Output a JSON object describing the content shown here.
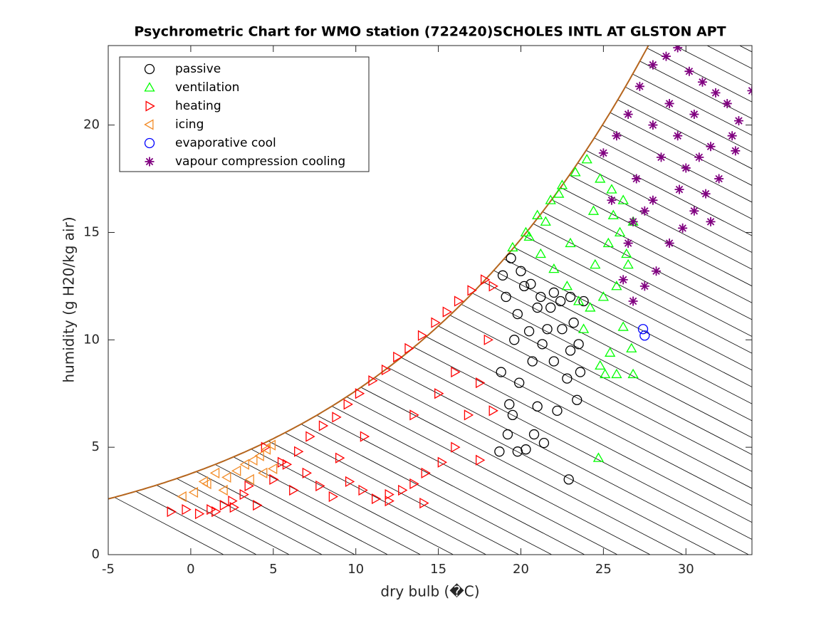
{
  "chart_data": {
    "type": "scatter",
    "title": "Psychrometric Chart for WMO station (722420)SCHOLES INTL AT GLSTON APT",
    "x_label": "dry bulb (�C)",
    "y_label": "humidity (g H20/kg air)",
    "xlim": [
      -5,
      34
    ],
    "ylim": [
      0,
      23.7
    ],
    "xticks": [
      -5,
      0,
      5,
      10,
      15,
      20,
      25,
      30
    ],
    "yticks": [
      0,
      5,
      10,
      15,
      20
    ],
    "legend": "upper left",
    "series": [
      {
        "name": "passive",
        "color": "#000000",
        "marker": "circle",
        "x": [
          18.7,
          19.2,
          19.5,
          19.8,
          20.3,
          20.8,
          21.4,
          21.0,
          22.2,
          22.9,
          23.4,
          23.6,
          23.0,
          22.5,
          21.8,
          21.2,
          20.6,
          20.0,
          19.4,
          18.9,
          19.1,
          19.8,
          20.5,
          21.3,
          22.0,
          22.8,
          23.5,
          23.8,
          23.2,
          22.4,
          21.6,
          20.7,
          19.9,
          19.3,
          18.8,
          19.6,
          20.2,
          21.0,
          22.0,
          23.0
        ],
        "values": [
          4.8,
          5.6,
          6.5,
          4.8,
          4.9,
          5.6,
          5.2,
          6.9,
          6.7,
          3.5,
          7.2,
          8.5,
          9.5,
          10.5,
          11.5,
          12.0,
          12.6,
          13.2,
          13.8,
          13.0,
          12.0,
          11.2,
          10.4,
          9.8,
          9.0,
          8.2,
          9.8,
          11.8,
          10.8,
          11.8,
          10.5,
          9.0,
          8.0,
          7.0,
          8.5,
          10.0,
          12.5,
          11.5,
          12.2,
          12.0
        ]
      },
      {
        "name": "ventilation",
        "color": "#00ff00",
        "marker": "triangle-up",
        "x": [
          19.5,
          20.3,
          21.0,
          21.8,
          22.5,
          23.3,
          24.0,
          24.8,
          25.5,
          26.2,
          26.8,
          26.5,
          25.8,
          25.0,
          24.2,
          23.5,
          22.8,
          22.0,
          21.2,
          20.5,
          24.7,
          26.8,
          25.8,
          25.1,
          24.8,
          26.7,
          26.2,
          25.4,
          23.8,
          24.5,
          25.3,
          26.0,
          22.3,
          21.5,
          23.0,
          24.4,
          25.6,
          26.4
        ],
        "values": [
          14.3,
          15.0,
          15.8,
          16.5,
          17.2,
          17.8,
          18.4,
          17.5,
          17.0,
          16.5,
          15.5,
          13.5,
          12.5,
          12.0,
          11.5,
          11.8,
          12.5,
          13.3,
          14.0,
          14.8,
          4.5,
          8.4,
          8.4,
          8.4,
          8.8,
          9.6,
          10.6,
          9.4,
          10.5,
          13.5,
          14.5,
          15.0,
          16.8,
          15.5,
          14.5,
          16.0,
          15.8,
          14.0
        ]
      },
      {
        "name": "heating",
        "color": "#ff0000",
        "marker": "triangle-right",
        "x": [
          -1.2,
          -0.3,
          0.5,
          1.2,
          2.0,
          2.5,
          3.2,
          4.0,
          5.0,
          5.8,
          6.5,
          7.2,
          8.0,
          8.8,
          9.5,
          10.2,
          11.0,
          11.8,
          12.5,
          13.2,
          14.0,
          14.8,
          15.5,
          16.2,
          17.0,
          17.8,
          18.3,
          18.0,
          17.5,
          16.8,
          16.0,
          15.2,
          14.2,
          13.5,
          12.8,
          12.0,
          11.2,
          10.4,
          9.6,
          8.6,
          7.8,
          7.0,
          6.2,
          5.5,
          4.5,
          3.5,
          2.6,
          1.5,
          13.5,
          16.0,
          17.5,
          10.5,
          9.0,
          15.0,
          18.3,
          12.0,
          14.1
        ],
        "values": [
          2.0,
          2.1,
          1.9,
          2.1,
          2.3,
          2.5,
          2.8,
          2.3,
          3.5,
          4.2,
          4.8,
          5.5,
          6.0,
          6.4,
          7.0,
          7.5,
          8.1,
          8.6,
          9.2,
          9.6,
          10.2,
          10.8,
          11.3,
          11.8,
          12.3,
          12.8,
          12.5,
          10.0,
          8.0,
          6.5,
          5.0,
          4.3,
          3.8,
          3.3,
          3.0,
          2.8,
          2.6,
          3.0,
          3.4,
          2.7,
          3.2,
          3.8,
          3.0,
          4.3,
          5.0,
          3.2,
          2.2,
          2.0,
          6.5,
          8.5,
          4.4,
          5.5,
          4.5,
          7.5,
          6.7,
          2.5,
          2.4
        ]
      },
      {
        "name": "icing",
        "color": "#f28c28",
        "marker": "triangle-left",
        "x": [
          -0.5,
          0.2,
          0.8,
          1.5,
          2.2,
          2.8,
          3.3,
          3.8,
          4.2,
          4.6,
          4.9,
          5.0,
          4.4,
          3.6,
          2.0,
          1.0
        ],
        "values": [
          2.7,
          2.9,
          3.4,
          3.8,
          3.6,
          3.9,
          4.2,
          4.4,
          4.6,
          4.9,
          5.1,
          4.0,
          3.8,
          3.5,
          3.0,
          3.3
        ]
      },
      {
        "name": "evaporative cool",
        "color": "#0000ff",
        "marker": "circle",
        "x": [
          27.4,
          27.5
        ],
        "values": [
          10.5,
          10.2
        ]
      },
      {
        "name": "vapour compression cooling",
        "color": "#800080",
        "marker": "asterisk",
        "x": [
          25.0,
          25.8,
          26.5,
          27.2,
          28.0,
          28.8,
          29.5,
          30.2,
          31.0,
          31.8,
          32.5,
          33.2,
          34.0,
          33.0,
          32.0,
          31.2,
          30.5,
          29.8,
          29.0,
          28.2,
          27.5,
          26.8,
          26.2,
          25.5,
          27.0,
          28.5,
          29.5,
          30.5,
          31.5,
          28.0,
          29.0,
          30.0,
          27.5,
          26.5,
          32.8,
          31.5,
          26.8,
          28.0,
          29.6,
          30.8
        ],
        "values": [
          18.7,
          19.5,
          20.5,
          21.8,
          22.8,
          23.2,
          23.6,
          22.5,
          22.0,
          21.5,
          21.0,
          20.2,
          21.6,
          18.8,
          17.5,
          16.8,
          16.0,
          15.2,
          14.5,
          13.2,
          12.5,
          11.8,
          12.8,
          16.5,
          17.5,
          18.5,
          19.5,
          20.5,
          19.0,
          20.0,
          21.0,
          18.0,
          16.0,
          14.5,
          19.5,
          15.5,
          15.5,
          16.5,
          17.0,
          18.5
        ]
      }
    ]
  }
}
